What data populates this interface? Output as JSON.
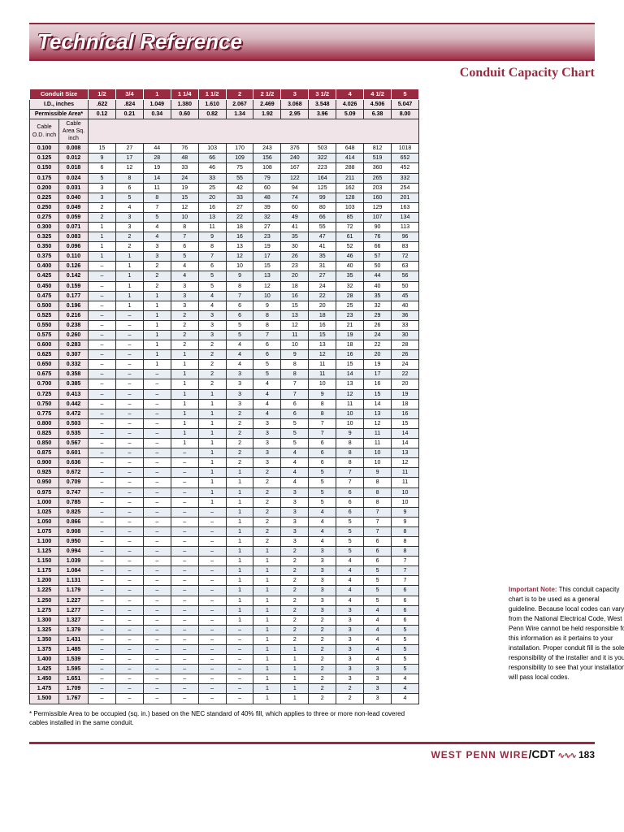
{
  "title": "Technical Reference",
  "subtitle": "Conduit Capacity Chart",
  "conduit_sizes": [
    "1/2",
    "3/4",
    "1",
    "1 1/4",
    "1 1/2",
    "2",
    "2 1/2",
    "3",
    "3 1/2",
    "4",
    "4 1/2",
    "5"
  ],
  "id_label": "I.D., inches",
  "id_vals": [
    ".622",
    ".824",
    "1.049",
    "1.380",
    "1.610",
    "2.067",
    "2.469",
    "3.068",
    "3.548",
    "4.026",
    "4.506",
    "5.047"
  ],
  "perm_label": "Permissible Area*",
  "perm_vals": [
    "0.12",
    "0.21",
    "0.34",
    "0.60",
    "0.82",
    "1.34",
    "1.92",
    "2.95",
    "3.96",
    "5.09",
    "6.38",
    "8.00"
  ],
  "col_a": "Cable O.D. inch",
  "col_b": "Cable Area Sq. inch",
  "rows": [
    [
      "0.100",
      "0.008",
      "15",
      "27",
      "44",
      "76",
      "103",
      "170",
      "243",
      "376",
      "503",
      "648",
      "812",
      "1018"
    ],
    [
      "0.125",
      "0.012",
      "9",
      "17",
      "28",
      "48",
      "66",
      "109",
      "156",
      "240",
      "322",
      "414",
      "519",
      "652"
    ],
    [
      "0.150",
      "0.018",
      "6",
      "12",
      "19",
      "33",
      "46",
      "75",
      "108",
      "167",
      "223",
      "288",
      "360",
      "452"
    ],
    [
      "0.175",
      "0.024",
      "5",
      "8",
      "14",
      "24",
      "33",
      "55",
      "79",
      "122",
      "164",
      "211",
      "265",
      "332"
    ],
    [
      "0.200",
      "0.031",
      "3",
      "6",
      "11",
      "19",
      "25",
      "42",
      "60",
      "94",
      "125",
      "162",
      "203",
      "254"
    ],
    [
      "0.225",
      "0.040",
      "3",
      "5",
      "8",
      "15",
      "20",
      "33",
      "48",
      "74",
      "99",
      "128",
      "160",
      "201"
    ],
    [
      "0.250",
      "0.049",
      "2",
      "4",
      "7",
      "12",
      "16",
      "27",
      "39",
      "60",
      "80",
      "103",
      "129",
      "163"
    ],
    [
      "0.275",
      "0.059",
      "2",
      "3",
      "5",
      "10",
      "13",
      "22",
      "32",
      "49",
      "66",
      "85",
      "107",
      "134"
    ],
    [
      "0.300",
      "0.071",
      "1",
      "3",
      "4",
      "8",
      "11",
      "18",
      "27",
      "41",
      "55",
      "72",
      "90",
      "113"
    ],
    [
      "0.325",
      "0.083",
      "1",
      "2",
      "4",
      "7",
      "9",
      "16",
      "23",
      "35",
      "47",
      "61",
      "76",
      "96"
    ],
    [
      "0.350",
      "0.096",
      "1",
      "2",
      "3",
      "6",
      "8",
      "13",
      "19",
      "30",
      "41",
      "52",
      "66",
      "83"
    ],
    [
      "0.375",
      "0.110",
      "1",
      "1",
      "3",
      "5",
      "7",
      "12",
      "17",
      "26",
      "35",
      "46",
      "57",
      "72"
    ],
    [
      "0.400",
      "0.126",
      "–",
      "1",
      "2",
      "4",
      "6",
      "10",
      "15",
      "23",
      "31",
      "40",
      "50",
      "63"
    ],
    [
      "0.425",
      "0.142",
      "–",
      "1",
      "2",
      "4",
      "5",
      "9",
      "13",
      "20",
      "27",
      "35",
      "44",
      "56"
    ],
    [
      "0.450",
      "0.159",
      "–",
      "1",
      "2",
      "3",
      "5",
      "8",
      "12",
      "18",
      "24",
      "32",
      "40",
      "50"
    ],
    [
      "0.475",
      "0.177",
      "–",
      "1",
      "1",
      "3",
      "4",
      "7",
      "10",
      "16",
      "22",
      "28",
      "35",
      "45"
    ],
    [
      "0.500",
      "0.196",
      "–",
      "1",
      "1",
      "3",
      "4",
      "6",
      "9",
      "15",
      "20",
      "25",
      "32",
      "40"
    ],
    [
      "0.525",
      "0.216",
      "–",
      "–",
      "1",
      "2",
      "3",
      "6",
      "8",
      "13",
      "18",
      "23",
      "29",
      "36"
    ],
    [
      "0.550",
      "0.238",
      "–",
      "–",
      "1",
      "2",
      "3",
      "5",
      "8",
      "12",
      "16",
      "21",
      "26",
      "33"
    ],
    [
      "0.575",
      "0.260",
      "–",
      "–",
      "1",
      "2",
      "3",
      "5",
      "7",
      "11",
      "15",
      "19",
      "24",
      "30"
    ],
    [
      "0.600",
      "0.283",
      "–",
      "–",
      "1",
      "2",
      "2",
      "4",
      "6",
      "10",
      "13",
      "18",
      "22",
      "28"
    ],
    [
      "0.625",
      "0.307",
      "–",
      "–",
      "1",
      "1",
      "2",
      "4",
      "6",
      "9",
      "12",
      "16",
      "20",
      "26"
    ],
    [
      "0.650",
      "0.332",
      "–",
      "–",
      "1",
      "1",
      "2",
      "4",
      "5",
      "8",
      "11",
      "15",
      "19",
      "24"
    ],
    [
      "0.675",
      "0.358",
      "–",
      "–",
      "–",
      "1",
      "2",
      "3",
      "5",
      "8",
      "11",
      "14",
      "17",
      "22"
    ],
    [
      "0.700",
      "0.385",
      "–",
      "–",
      "–",
      "1",
      "2",
      "3",
      "4",
      "7",
      "10",
      "13",
      "16",
      "20"
    ],
    [
      "0.725",
      "0.413",
      "–",
      "–",
      "–",
      "1",
      "1",
      "3",
      "4",
      "7",
      "9",
      "12",
      "15",
      "19"
    ],
    [
      "0.750",
      "0.442",
      "–",
      "–",
      "–",
      "1",
      "1",
      "3",
      "4",
      "6",
      "8",
      "11",
      "14",
      "18"
    ],
    [
      "0.775",
      "0.472",
      "–",
      "–",
      "–",
      "1",
      "1",
      "2",
      "4",
      "6",
      "8",
      "10",
      "13",
      "16"
    ],
    [
      "0.800",
      "0.503",
      "–",
      "–",
      "–",
      "1",
      "1",
      "2",
      "3",
      "5",
      "7",
      "10",
      "12",
      "15"
    ],
    [
      "0.825",
      "0.535",
      "–",
      "–",
      "–",
      "1",
      "1",
      "2",
      "3",
      "5",
      "7",
      "9",
      "11",
      "14"
    ],
    [
      "0.850",
      "0.567",
      "–",
      "–",
      "–",
      "1",
      "1",
      "2",
      "3",
      "5",
      "6",
      "8",
      "11",
      "14"
    ],
    [
      "0.875",
      "0.601",
      "–",
      "–",
      "–",
      "–",
      "1",
      "2",
      "3",
      "4",
      "6",
      "8",
      "10",
      "13"
    ],
    [
      "0.900",
      "0.636",
      "–",
      "–",
      "–",
      "–",
      "1",
      "2",
      "3",
      "4",
      "6",
      "8",
      "10",
      "12"
    ],
    [
      "0.925",
      "0.672",
      "–",
      "–",
      "–",
      "–",
      "1",
      "1",
      "2",
      "4",
      "5",
      "7",
      "9",
      "11"
    ],
    [
      "0.950",
      "0.709",
      "–",
      "–",
      "–",
      "–",
      "1",
      "1",
      "2",
      "4",
      "5",
      "7",
      "8",
      "11"
    ],
    [
      "0.975",
      "0.747",
      "–",
      "–",
      "–",
      "–",
      "1",
      "1",
      "2",
      "3",
      "5",
      "6",
      "8",
      "10"
    ],
    [
      "1.000",
      "0.785",
      "–",
      "–",
      "–",
      "–",
      "1",
      "1",
      "2",
      "3",
      "5",
      "6",
      "8",
      "10"
    ],
    [
      "1.025",
      "0.825",
      "–",
      "–",
      "–",
      "–",
      "–",
      "1",
      "2",
      "3",
      "4",
      "6",
      "7",
      "9"
    ],
    [
      "1.050",
      "0.866",
      "–",
      "–",
      "–",
      "–",
      "–",
      "1",
      "2",
      "3",
      "4",
      "5",
      "7",
      "9"
    ],
    [
      "1.075",
      "0.908",
      "–",
      "–",
      "–",
      "–",
      "–",
      "1",
      "2",
      "3",
      "4",
      "5",
      "7",
      "8"
    ],
    [
      "1.100",
      "0.950",
      "–",
      "–",
      "–",
      "–",
      "–",
      "1",
      "2",
      "3",
      "4",
      "5",
      "6",
      "8"
    ],
    [
      "1.125",
      "0.994",
      "–",
      "–",
      "–",
      "–",
      "–",
      "1",
      "1",
      "2",
      "3",
      "5",
      "6",
      "8"
    ],
    [
      "1.150",
      "1.039",
      "–",
      "–",
      "–",
      "–",
      "–",
      "1",
      "1",
      "2",
      "3",
      "4",
      "6",
      "7"
    ],
    [
      "1.175",
      "1.084",
      "–",
      "–",
      "–",
      "–",
      "–",
      "1",
      "1",
      "2",
      "3",
      "4",
      "5",
      "7"
    ],
    [
      "1.200",
      "1.131",
      "–",
      "–",
      "–",
      "–",
      "–",
      "1",
      "1",
      "2",
      "3",
      "4",
      "5",
      "7"
    ],
    [
      "1.225",
      "1.179",
      "–",
      "–",
      "–",
      "–",
      "–",
      "1",
      "1",
      "2",
      "3",
      "4",
      "5",
      "6"
    ],
    [
      "1.250",
      "1.227",
      "–",
      "–",
      "–",
      "–",
      "–",
      "1",
      "1",
      "2",
      "3",
      "4",
      "5",
      "6"
    ],
    [
      "1.275",
      "1.277",
      "–",
      "–",
      "–",
      "–",
      "–",
      "1",
      "1",
      "2",
      "3",
      "3",
      "4",
      "6"
    ],
    [
      "1.300",
      "1.327",
      "–",
      "–",
      "–",
      "–",
      "–",
      "1",
      "1",
      "2",
      "2",
      "3",
      "4",
      "6"
    ],
    [
      "1.325",
      "1.379",
      "–",
      "–",
      "–",
      "–",
      "–",
      "–",
      "1",
      "2",
      "2",
      "3",
      "4",
      "5"
    ],
    [
      "1.350",
      "1.431",
      "–",
      "–",
      "–",
      "–",
      "–",
      "–",
      "1",
      "2",
      "2",
      "3",
      "4",
      "5"
    ],
    [
      "1.375",
      "1.485",
      "–",
      "–",
      "–",
      "–",
      "–",
      "–",
      "1",
      "1",
      "2",
      "3",
      "4",
      "5"
    ],
    [
      "1.400",
      "1.539",
      "–",
      "–",
      "–",
      "–",
      "–",
      "–",
      "1",
      "1",
      "2",
      "3",
      "4",
      "5"
    ],
    [
      "1.425",
      "1.595",
      "–",
      "–",
      "–",
      "–",
      "–",
      "–",
      "1",
      "1",
      "2",
      "3",
      "3",
      "5"
    ],
    [
      "1.450",
      "1.651",
      "–",
      "–",
      "–",
      "–",
      "–",
      "–",
      "1",
      "1",
      "2",
      "3",
      "3",
      "4"
    ],
    [
      "1.475",
      "1.709",
      "–",
      "–",
      "–",
      "–",
      "–",
      "–",
      "1",
      "1",
      "2",
      "2",
      "3",
      "4"
    ],
    [
      "1.500",
      "1.767",
      "–",
      "–",
      "–",
      "–",
      "–",
      "–",
      "1",
      "1",
      "2",
      "2",
      "3",
      "4"
    ]
  ],
  "footnote": "* Permissible Area to be occupied (sq. in.) based on the NEC standard of 40% fill, which applies to three or more non-lead covered cables installed in the same conduit.",
  "note_bold": "Important Note:",
  "note_body": " This conduit capacity chart is to be used as a general guideline. Because local codes can vary from the National Electrical Code, West Penn Wire cannot be held responsible for this information as it pertains to your installation. Proper conduit fill is the sole responsibility of the installer and it is your responsibility to see that your installation will pass local codes.",
  "footer_brand": "WEST PENN WIRE",
  "footer_cdt": "/CDT",
  "page_num": "183",
  "conduit_label": "Conduit Size"
}
